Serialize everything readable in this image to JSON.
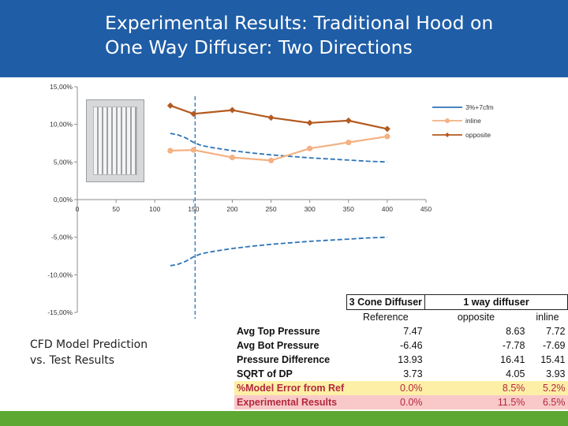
{
  "title": {
    "line1": "Experimental Results: Traditional Hood on",
    "line2": "One Way Diffuser: Two Directions"
  },
  "caption": {
    "line1": "CFD Model Prediction",
    "line2": "vs. Test Results"
  },
  "colors": {
    "title_bar": "#1f5da6",
    "bottom_bar": "#5da833",
    "series_3pct": "#2e74b5",
    "inline": "#f4b183",
    "opposite": "#b35a1f",
    "marker_line": "#2e74b5"
  },
  "chart_data": {
    "type": "line",
    "xlim": [
      0,
      450
    ],
    "ylim": [
      -15,
      15
    ],
    "x_ticks": [
      "0",
      "50",
      "100",
      "150",
      "200",
      "250",
      "300",
      "350",
      "400",
      "450"
    ],
    "y_ticks": [
      "15,00%",
      "10,00%",
      "5,00%",
      "0,00%",
      "-5,00%",
      "-10,00%",
      "-15,00%"
    ],
    "vertical_marker_x": 152,
    "legend": [
      "3%+7cfm",
      "inline",
      "opposite"
    ],
    "series": [
      {
        "name": "3%+7cfm upper",
        "style": "dashed",
        "x": [
          120,
          130,
          140,
          150,
          160,
          175,
          200,
          225,
          250,
          275,
          300,
          325,
          350,
          375,
          400
        ],
        "y": [
          8.8,
          8.6,
          8.2,
          7.6,
          7.2,
          6.9,
          6.5,
          6.2,
          5.95,
          5.75,
          5.55,
          5.4,
          5.25,
          5.1,
          5.0
        ]
      },
      {
        "name": "3%+7cfm lower",
        "style": "dashed",
        "x": [
          120,
          130,
          140,
          150,
          160,
          175,
          200,
          225,
          250,
          275,
          300,
          325,
          350,
          375,
          400
        ],
        "y": [
          -8.8,
          -8.6,
          -8.2,
          -7.6,
          -7.2,
          -6.9,
          -6.5,
          -6.2,
          -5.95,
          -5.75,
          -5.55,
          -5.4,
          -5.25,
          -5.1,
          -5.0
        ]
      },
      {
        "name": "inline",
        "x": [
          120,
          150,
          200,
          250,
          300,
          350,
          400
        ],
        "y": [
          6.5,
          6.6,
          5.6,
          5.2,
          6.8,
          7.6,
          8.4
        ]
      },
      {
        "name": "opposite",
        "x": [
          120,
          150,
          200,
          250,
          300,
          350,
          400
        ],
        "y": [
          12.5,
          11.4,
          11.9,
          10.9,
          10.2,
          10.5,
          9.4
        ]
      }
    ]
  },
  "table": {
    "header": [
      "",
      "3 Cone Diffuser",
      "1 way diffuser"
    ],
    "subheader": [
      "",
      "Reference",
      "opposite",
      "inline"
    ],
    "rows": [
      {
        "label": "Avg Top Pressure",
        "values": [
          "7.47",
          "8.63",
          "7.72"
        ]
      },
      {
        "label": "Avg Bot Pressure",
        "values": [
          "-6.46",
          "-7.78",
          "-7.69"
        ]
      },
      {
        "label": "Pressure Difference",
        "values": [
          "13.93",
          "16.41",
          "15.41"
        ]
      },
      {
        "label": "SQRT of DP",
        "values": [
          "3.73",
          "4.05",
          "3.93"
        ]
      },
      {
        "label": "%Model Error from Ref",
        "values": [
          "0.0%",
          "8.5%",
          "5.2%"
        ]
      },
      {
        "label": "Experimental Results",
        "values": [
          "0.0%",
          "11.5%",
          "6.5%"
        ]
      }
    ]
  }
}
